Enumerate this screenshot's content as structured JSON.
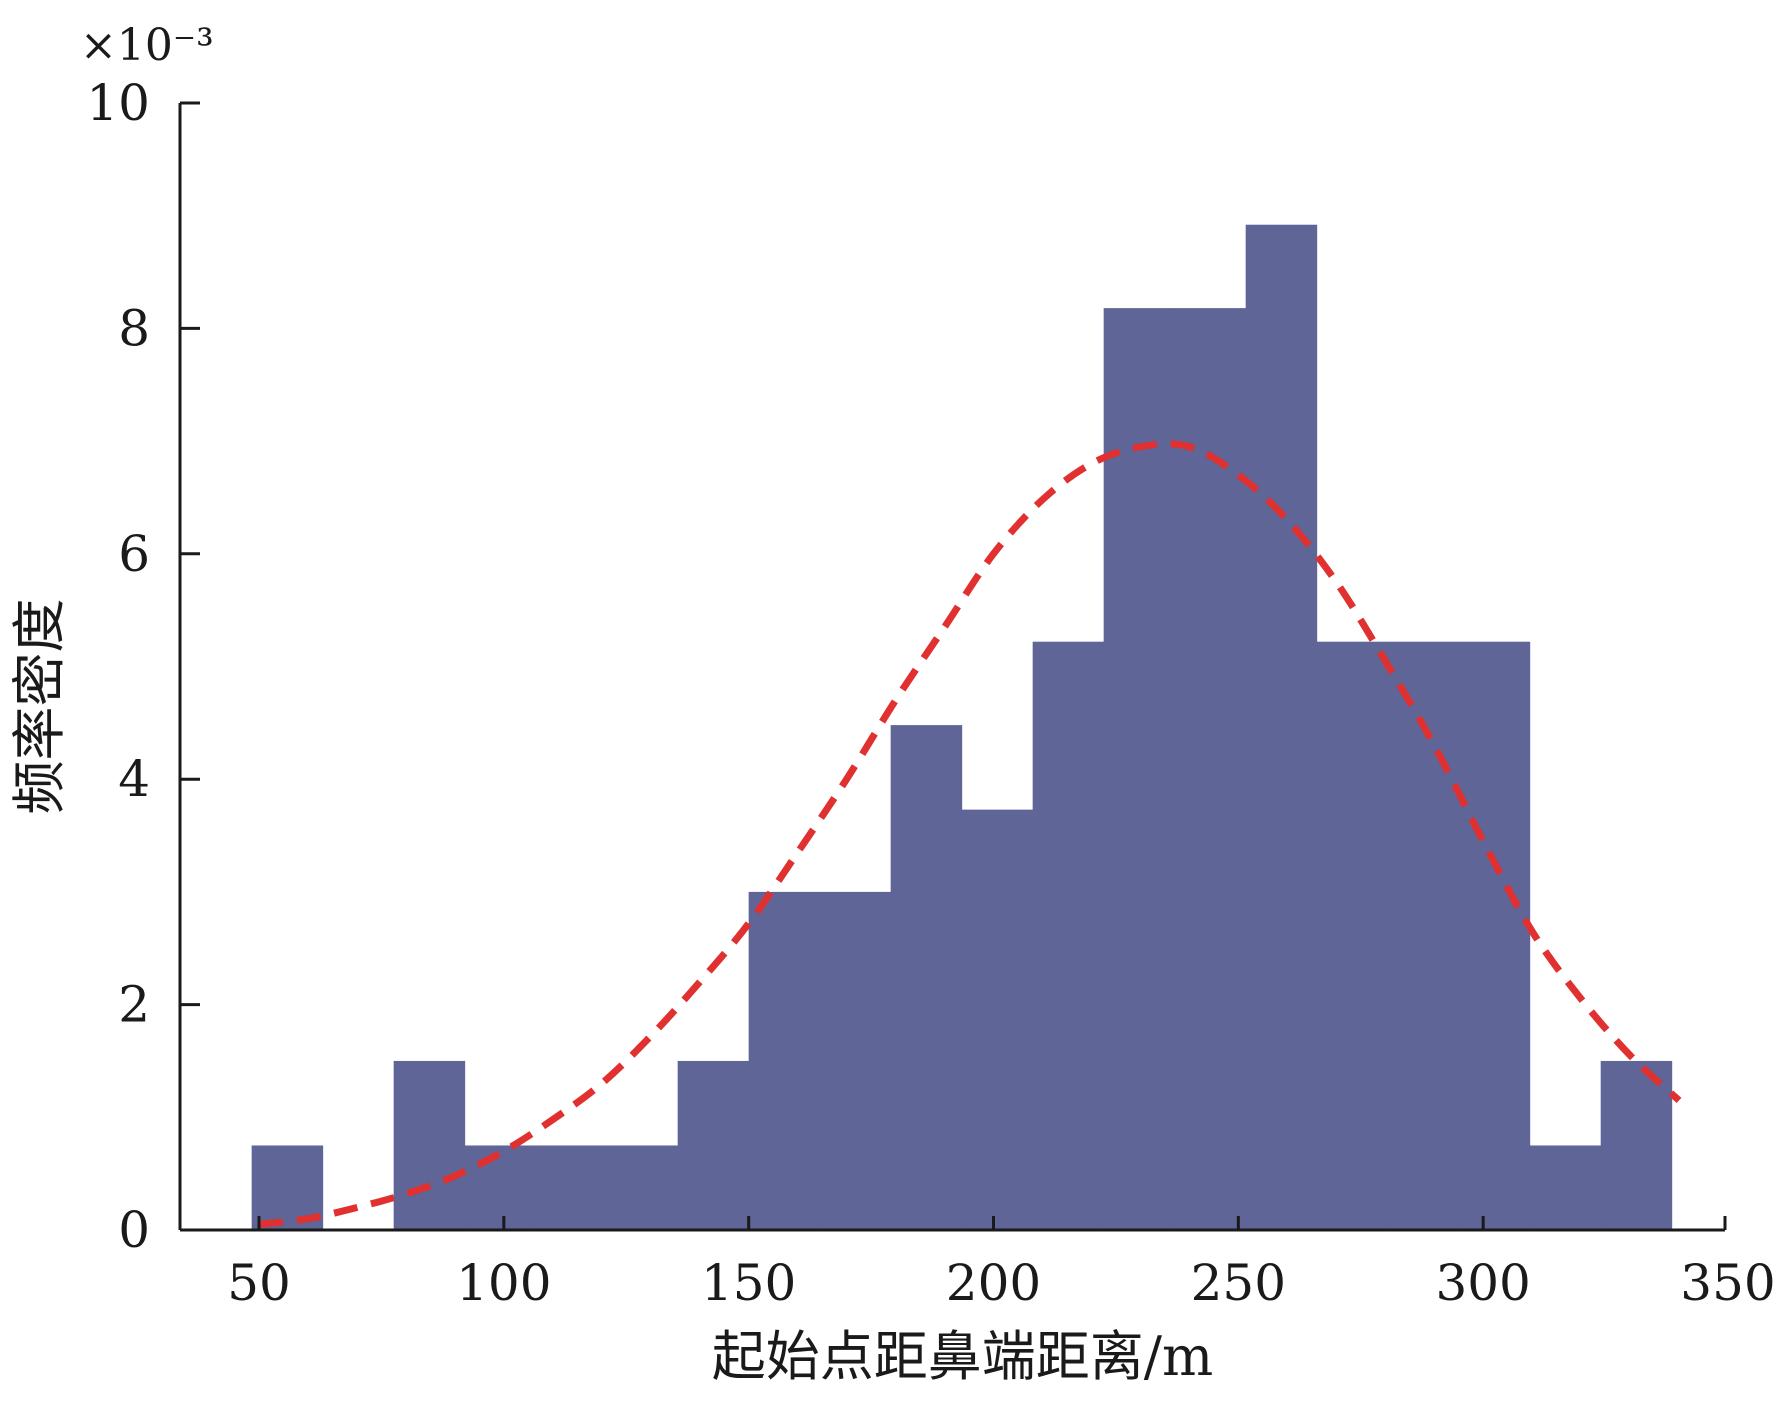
{
  "chart_data": {
    "type": "bar",
    "subtype": "histogram",
    "xlabel": "起始点距鼻端距离/m",
    "ylabel": "频率密度",
    "y_scale_factor": "×10⁻³",
    "xlim": [
      50,
      350
    ],
    "ylim": [
      0,
      10
    ],
    "x_ticks": [
      50,
      100,
      150,
      200,
      250,
      300,
      350
    ],
    "y_ticks": [
      0,
      2,
      4,
      6,
      8,
      10
    ],
    "grid": false,
    "legend": "none",
    "bins": [
      {
        "x0": 48.5,
        "x1": 63,
        "value": 0.75
      },
      {
        "x0": 63,
        "x1": 77.5,
        "value": 0
      },
      {
        "x0": 77.5,
        "x1": 92,
        "value": 1.5
      },
      {
        "x0": 92,
        "x1": 106.5,
        "value": 0.75
      },
      {
        "x0": 106.5,
        "x1": 121,
        "value": 0.75
      },
      {
        "x0": 121,
        "x1": 135.5,
        "value": 0.75
      },
      {
        "x0": 135.5,
        "x1": 150,
        "value": 1.5
      },
      {
        "x0": 150,
        "x1": 164.5,
        "value": 3.0
      },
      {
        "x0": 164.5,
        "x1": 179,
        "value": 3.0
      },
      {
        "x0": 179,
        "x1": 193.5,
        "value": 4.48
      },
      {
        "x0": 193.5,
        "x1": 208,
        "value": 3.73
      },
      {
        "x0": 208,
        "x1": 222.5,
        "value": 5.22
      },
      {
        "x0": 222.5,
        "x1": 237,
        "value": 8.18
      },
      {
        "x0": 237,
        "x1": 251.5,
        "value": 8.18
      },
      {
        "x0": 251.5,
        "x1": 266,
        "value": 8.92
      },
      {
        "x0": 266,
        "x1": 280.5,
        "value": 5.22
      },
      {
        "x0": 280.5,
        "x1": 295,
        "value": 5.22
      },
      {
        "x0": 295,
        "x1": 309.5,
        "value": 5.22
      },
      {
        "x0": 309.5,
        "x1": 324,
        "value": 0.75
      },
      {
        "x0": 324,
        "x1": 338.5,
        "value": 1.5
      }
    ],
    "fit_curve": {
      "style": "dashed",
      "x": [
        50,
        60,
        70,
        80,
        90,
        100,
        110,
        120,
        130,
        140,
        150,
        160,
        170,
        180,
        190,
        200,
        210,
        220,
        230,
        240,
        250,
        260,
        270,
        280,
        290,
        300,
        310,
        320,
        330,
        340
      ],
      "y": [
        0.05,
        0.1,
        0.2,
        0.32,
        0.48,
        0.7,
        0.98,
        1.3,
        1.72,
        2.2,
        2.72,
        3.35,
        4.0,
        4.7,
        5.35,
        6.0,
        6.48,
        6.8,
        6.95,
        6.95,
        6.7,
        6.3,
        5.75,
        5.05,
        4.3,
        3.45,
        2.65,
        2.05,
        1.55,
        1.15
      ]
    },
    "colors": {
      "bar_fill": "#5f6596",
      "curve": "#e03030",
      "axis": "#1a1a1a"
    }
  }
}
